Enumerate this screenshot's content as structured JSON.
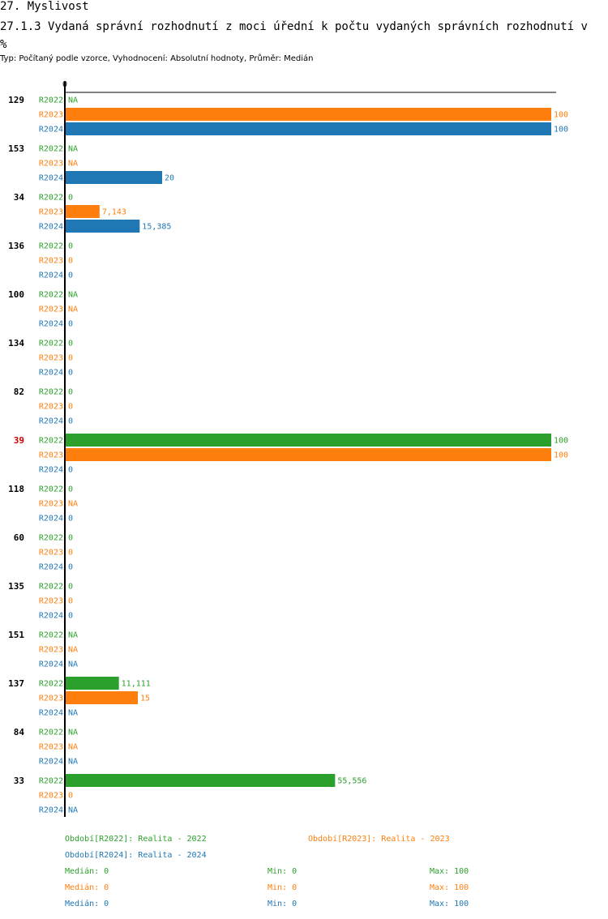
{
  "header": {
    "title": "27. Myslivost",
    "subtitle": "27.1.3 Vydaná správní rozhodnutí z moci úřední  k počtu vydaných správních rozhodnutí v %",
    "description": "Typ: Počítaný podle vzorce, Vyhodnocení: Absolutní hodnoty, Průměr: Medián"
  },
  "colors": {
    "R2022": "#2ca02c",
    "R2023": "#ff7f0e",
    "R2024": "#1f77b4",
    "highlight": "#cc0000"
  },
  "chart_data": {
    "type": "bar",
    "orientation": "horizontal",
    "axis_zero_label": "0",
    "xlim": [
      0,
      100
    ],
    "series_labels": [
      "R2022",
      "R2023",
      "R2024"
    ],
    "highlight_group": "39",
    "groups": [
      {
        "id": "129",
        "values": [
          null,
          100,
          100
        ],
        "labels": [
          "NA",
          "100",
          "100"
        ]
      },
      {
        "id": "153",
        "values": [
          null,
          null,
          20
        ],
        "labels": [
          "NA",
          "NA",
          "20"
        ]
      },
      {
        "id": "34",
        "values": [
          0,
          7.143,
          15.385
        ],
        "labels": [
          "0",
          "7,143",
          "15,385"
        ]
      },
      {
        "id": "136",
        "values": [
          0,
          0,
          0
        ],
        "labels": [
          "0",
          "0",
          "0"
        ]
      },
      {
        "id": "100",
        "values": [
          null,
          null,
          0
        ],
        "labels": [
          "NA",
          "NA",
          "0"
        ]
      },
      {
        "id": "134",
        "values": [
          0,
          0,
          0
        ],
        "labels": [
          "0",
          "0",
          "0"
        ]
      },
      {
        "id": "82",
        "values": [
          0,
          0,
          0
        ],
        "labels": [
          "0",
          "0",
          "0"
        ]
      },
      {
        "id": "39",
        "values": [
          100,
          100,
          0
        ],
        "labels": [
          "100",
          "100",
          "0"
        ]
      },
      {
        "id": "118",
        "values": [
          0,
          null,
          0
        ],
        "labels": [
          "0",
          "NA",
          "0"
        ]
      },
      {
        "id": "60",
        "values": [
          0,
          0,
          0
        ],
        "labels": [
          "0",
          "0",
          "0"
        ]
      },
      {
        "id": "135",
        "values": [
          0,
          0,
          0
        ],
        "labels": [
          "0",
          "0",
          "0"
        ]
      },
      {
        "id": "151",
        "values": [
          null,
          null,
          null
        ],
        "labels": [
          "NA",
          "NA",
          "NA"
        ]
      },
      {
        "id": "137",
        "values": [
          11.111,
          15,
          null
        ],
        "labels": [
          "11,111",
          "15",
          "NA"
        ]
      },
      {
        "id": "84",
        "values": [
          null,
          null,
          null
        ],
        "labels": [
          "NA",
          "NA",
          "NA"
        ]
      },
      {
        "id": "33",
        "values": [
          55.556,
          0,
          null
        ],
        "labels": [
          "55,556",
          "0",
          "NA"
        ]
      }
    ]
  },
  "legend": {
    "periods": [
      {
        "key": "R2022",
        "text": "Období[R2022]: Realita - 2022"
      },
      {
        "key": "R2023",
        "text": "Období[R2023]: Realita - 2023"
      },
      {
        "key": "R2024",
        "text": "Období[R2024]: Realita - 2024"
      }
    ],
    "stats": [
      {
        "key": "R2022",
        "median": "Medián: 0",
        "min": "Min: 0",
        "max": "Max: 100"
      },
      {
        "key": "R2023",
        "median": "Medián: 0",
        "min": "Min: 0",
        "max": "Max: 100"
      },
      {
        "key": "R2024",
        "median": "Medián: 0",
        "min": "Min: 0",
        "max": "Max: 100"
      }
    ]
  }
}
